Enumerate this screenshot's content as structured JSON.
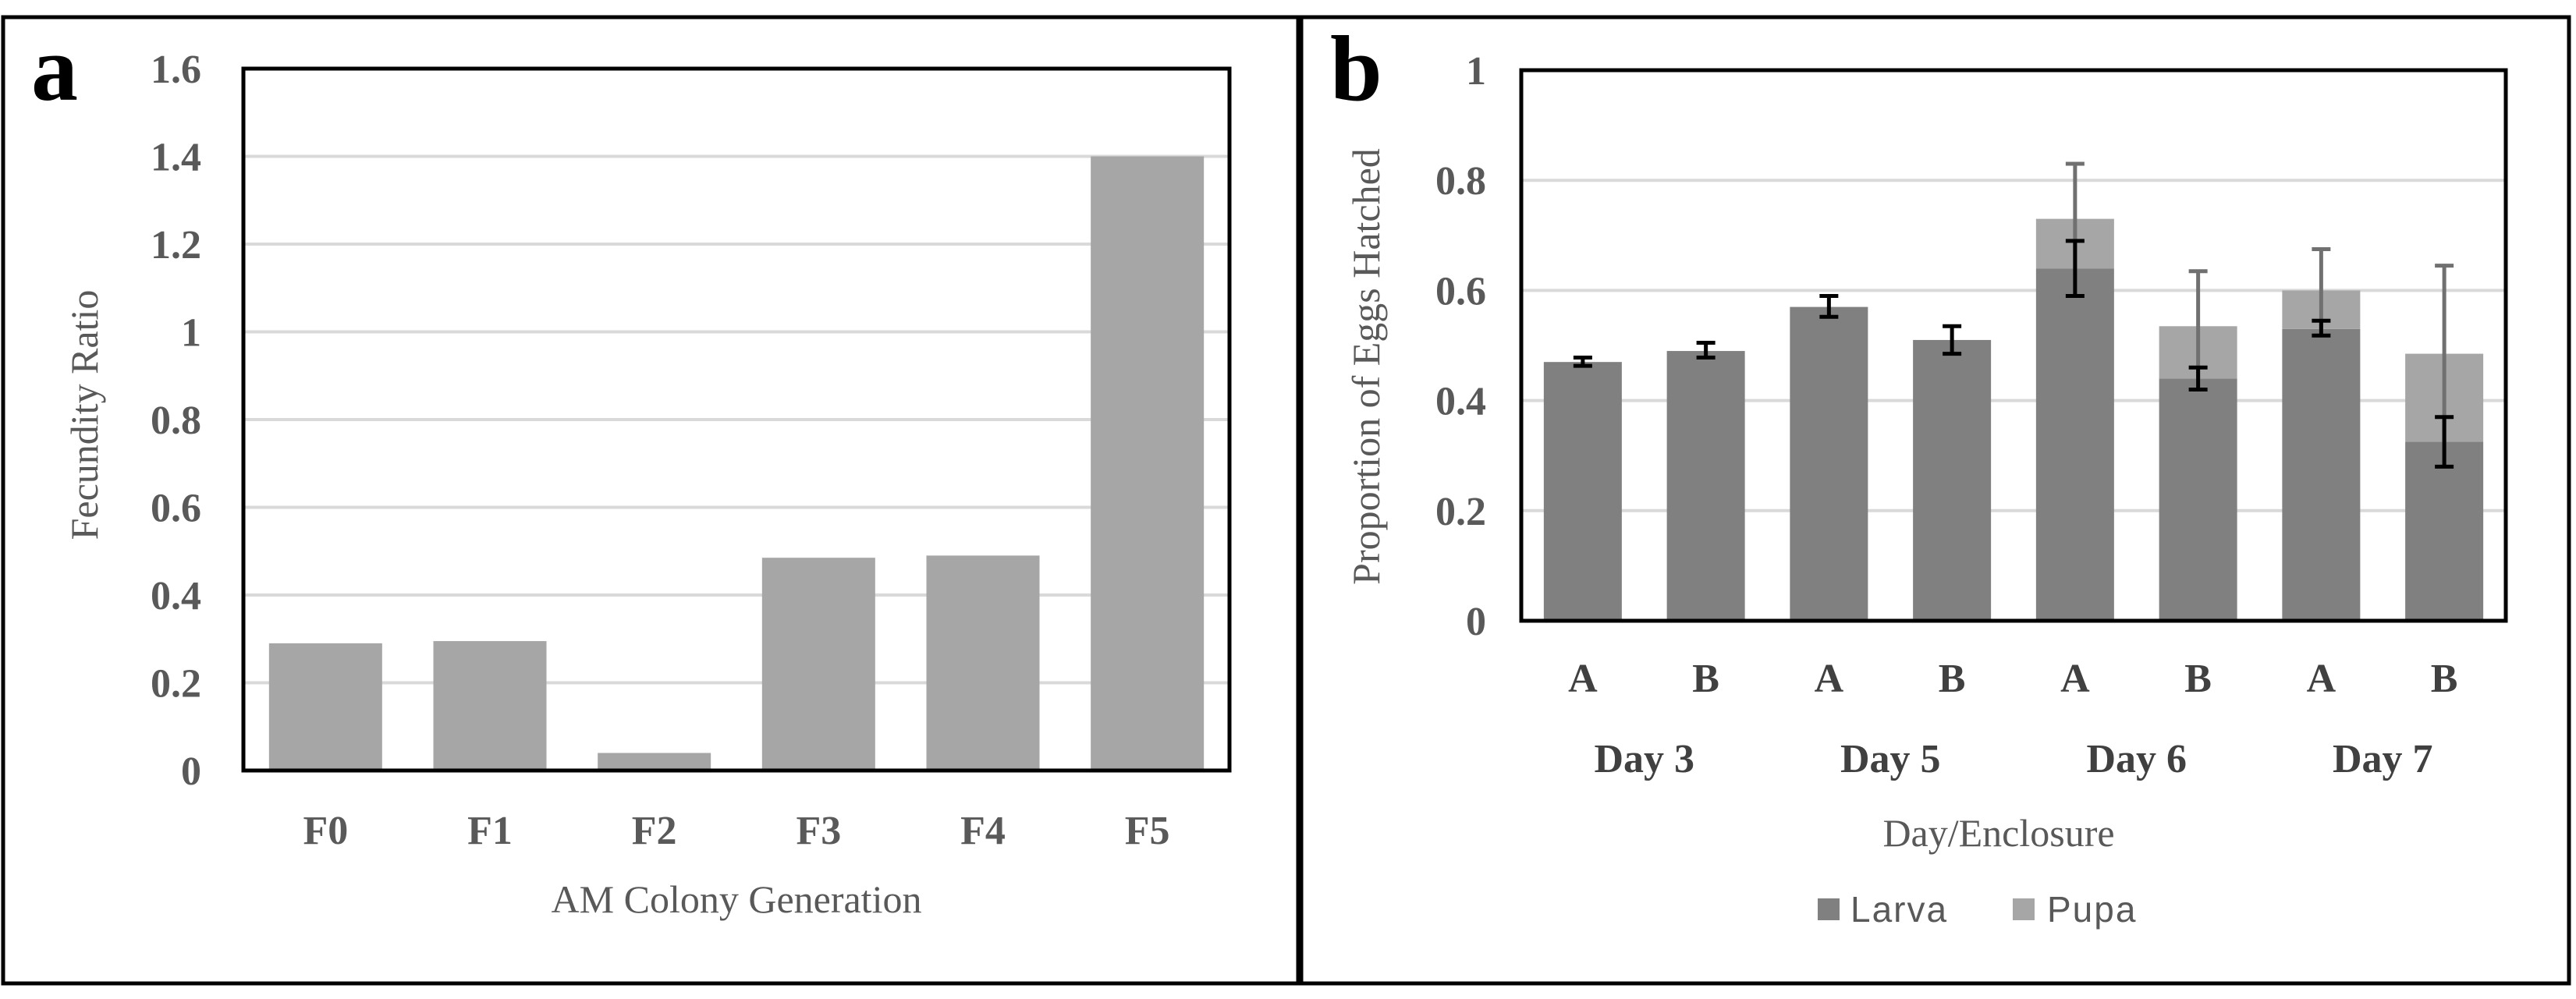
{
  "colors": {
    "bar_a": "#a6a6a6",
    "larva": "#808080",
    "pupa": "#a6a6a6",
    "grid": "#d9d9d9",
    "error_gray": "#707070",
    "error_black": "#000000"
  },
  "chart_data": [
    {
      "panel": "a",
      "type": "bar",
      "categories": [
        "F0",
        "F1",
        "F2",
        "F3",
        "F4",
        "F5"
      ],
      "values": [
        0.29,
        0.295,
        0.04,
        0.485,
        0.49,
        1.4
      ],
      "xlabel": "AM Colony Generation",
      "ylabel": "Fecundity Ratio",
      "ylim": [
        0,
        1.6
      ],
      "yticks": [
        "0",
        "0.2",
        "0.4",
        "0.6",
        "0.8",
        "1",
        "1.2",
        "1.4",
        "1.6"
      ],
      "grid": true
    },
    {
      "panel": "b",
      "type": "bar",
      "stacked": true,
      "categories": [
        "A",
        "B",
        "A",
        "B",
        "A",
        "B",
        "A",
        "B"
      ],
      "groups": [
        "Day 3",
        "Day 5",
        "Day 6",
        "Day 7"
      ],
      "series": [
        {
          "name": "Larva",
          "values": [
            0.47,
            0.49,
            0.57,
            0.51,
            0.64,
            0.44,
            0.53,
            0.325
          ],
          "error_low": [
            0.463,
            0.478,
            0.552,
            0.485,
            0.59,
            0.42,
            0.518,
            0.28
          ],
          "error_high": [
            0.478,
            0.505,
            0.59,
            0.535,
            0.69,
            0.46,
            0.545,
            0.37
          ]
        },
        {
          "name": "Pupa",
          "values": [
            0,
            0,
            0,
            0,
            0.09,
            0.095,
            0.07,
            0.16
          ],
          "error_low": [
            null,
            null,
            null,
            null,
            0.64,
            0.44,
            0.53,
            0.325
          ],
          "error_high": [
            null,
            null,
            null,
            null,
            0.83,
            0.635,
            0.675,
            0.645
          ]
        }
      ],
      "xlabel": "Day/Enclosure",
      "ylabel": "Proportion of Eggs Hatched",
      "ylim": [
        0,
        1
      ],
      "yticks": [
        "0",
        "0.2",
        "0.4",
        "0.6",
        "0.8",
        "1"
      ],
      "legend": [
        "Larva",
        "Pupa"
      ],
      "legend_position": "bottom",
      "grid": true
    }
  ]
}
